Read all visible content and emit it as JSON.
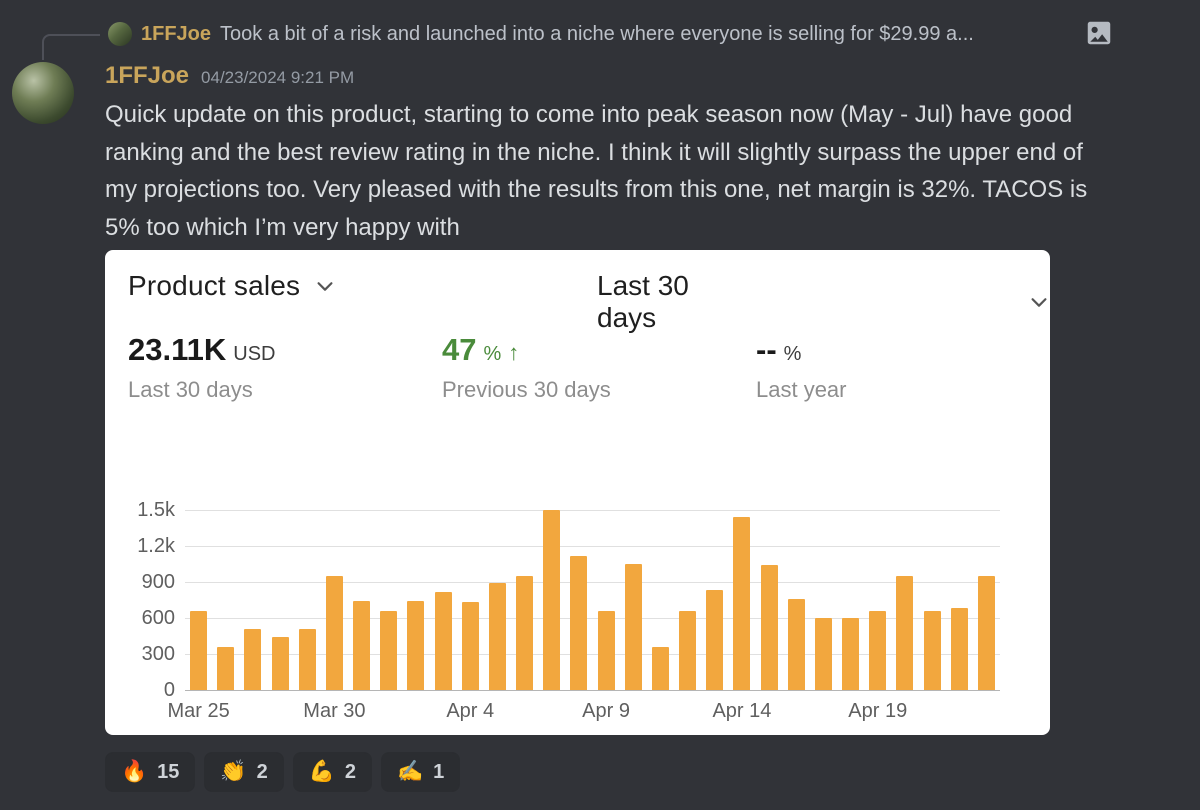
{
  "reply": {
    "username": "1FFJoe",
    "preview": "Took a bit of a risk and launched into a niche where everyone is selling for $29.99 a..."
  },
  "message": {
    "username": "1FFJoe",
    "timestamp": "04/23/2024 9:21 PM",
    "text": "Quick update on this product, starting to come into peak season now (May - Jul) have good ranking and the best review rating in the niche. I think it will slightly surpass the upper end of my projections too. Very pleased with the results from this one, net margin is 32%. TACOS is 5% too which I’m very happy with"
  },
  "card": {
    "metric_dropdown": "Product sales",
    "range_dropdown": "Last 30 days",
    "stats": [
      {
        "value": "23.11K",
        "unit": "USD",
        "label": "Last 30 days"
      },
      {
        "value": "47",
        "unit": "%",
        "arrow": "↑",
        "label": "Previous 30 days"
      },
      {
        "value": "--",
        "unit": "%",
        "label": "Last year"
      }
    ]
  },
  "chart_data": {
    "type": "bar",
    "title": "Product sales - Last 30 days",
    "x": [
      "Mar 25",
      "Mar 26",
      "Mar 27",
      "Mar 28",
      "Mar 29",
      "Mar 30",
      "Mar 31",
      "Apr 1",
      "Apr 2",
      "Apr 3",
      "Apr 4",
      "Apr 5",
      "Apr 6",
      "Apr 7",
      "Apr 8",
      "Apr 9",
      "Apr 10",
      "Apr 11",
      "Apr 12",
      "Apr 13",
      "Apr 14",
      "Apr 15",
      "Apr 16",
      "Apr 17",
      "Apr 18",
      "Apr 19",
      "Apr 20",
      "Apr 21",
      "Apr 22",
      "Apr 23"
    ],
    "values": [
      660,
      360,
      510,
      440,
      510,
      950,
      740,
      660,
      740,
      820,
      730,
      890,
      950,
      1500,
      1120,
      660,
      1050,
      360,
      660,
      830,
      1440,
      1040,
      760,
      600,
      600,
      660,
      950,
      660,
      680,
      950
    ],
    "x_tick_labels": [
      "Mar 25",
      "Mar 30",
      "Apr 4",
      "Apr 9",
      "Apr 14",
      "Apr 19"
    ],
    "x_tick_indices": [
      0,
      5,
      10,
      15,
      20,
      25
    ],
    "y_ticks": [
      0,
      300,
      600,
      900,
      1200,
      1500
    ],
    "y_tick_labels": [
      "0",
      "300",
      "600",
      "900",
      "1.2k",
      "1.5k"
    ],
    "ylim": [
      0,
      1500
    ],
    "grid": true,
    "legend": "none",
    "bar_color": "#f2a73e"
  },
  "reactions": [
    {
      "emoji": "🔥",
      "count": "15"
    },
    {
      "emoji": "👏",
      "count": "2"
    },
    {
      "emoji": "💪",
      "count": "2"
    },
    {
      "emoji": "✍️",
      "count": "1"
    }
  ],
  "icons": {
    "attachment": "image-icon",
    "metric_dropdown": "chevron-down-icon",
    "range_dropdown": "chevron-down-icon",
    "increase": "up-arrow-icon"
  },
  "colors": {
    "background": "#313338",
    "card_background": "#ffffff",
    "username_gold": "#c9a55b",
    "positive_green": "#4a8b3b",
    "bar_orange": "#f2a73e",
    "reaction_pill": "#2b2d31"
  }
}
